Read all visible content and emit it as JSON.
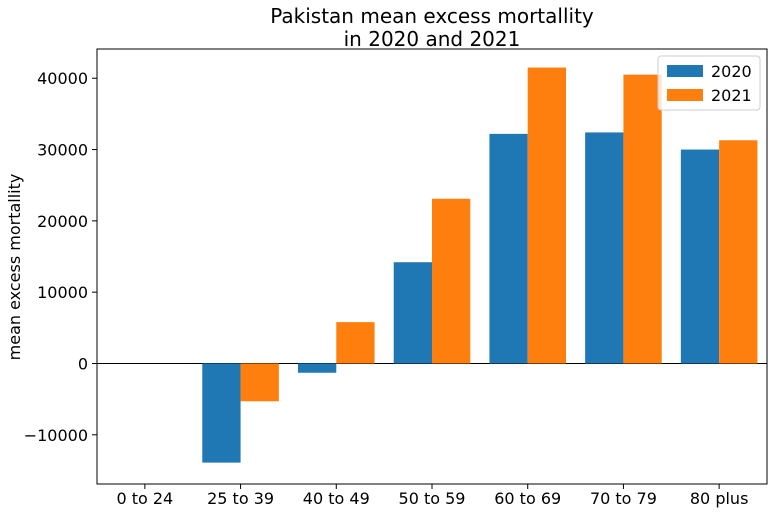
{
  "chart_data": {
    "type": "bar",
    "title": [
      "Pakistan mean excess mortallity",
      "in 2020 and 2021"
    ],
    "xlabel": "",
    "ylabel": "mean excess mortallity",
    "categories": [
      "0 to 24",
      "25 to 39",
      "40 to 49",
      "50 to 59",
      "60 to 69",
      "70 to 79",
      "80 plus"
    ],
    "series": [
      {
        "name": "2020",
        "color": "#1f77b4",
        "values": [
          0,
          -13900,
          -1300,
          14200,
          32200,
          32400,
          30000
        ]
      },
      {
        "name": "2021",
        "color": "#ff7f0e",
        "values": [
          0,
          -5300,
          5800,
          23100,
          41500,
          40500,
          31300
        ]
      }
    ],
    "ylim": [
      -16900,
      44100
    ],
    "yticks": [
      -10000,
      0,
      10000,
      20000,
      30000,
      40000
    ],
    "ytick_labels": [
      "−10000",
      "0",
      "10000",
      "20000",
      "30000",
      "40000"
    ],
    "zero_line": true,
    "grid": false,
    "legend_position": "top-right"
  }
}
